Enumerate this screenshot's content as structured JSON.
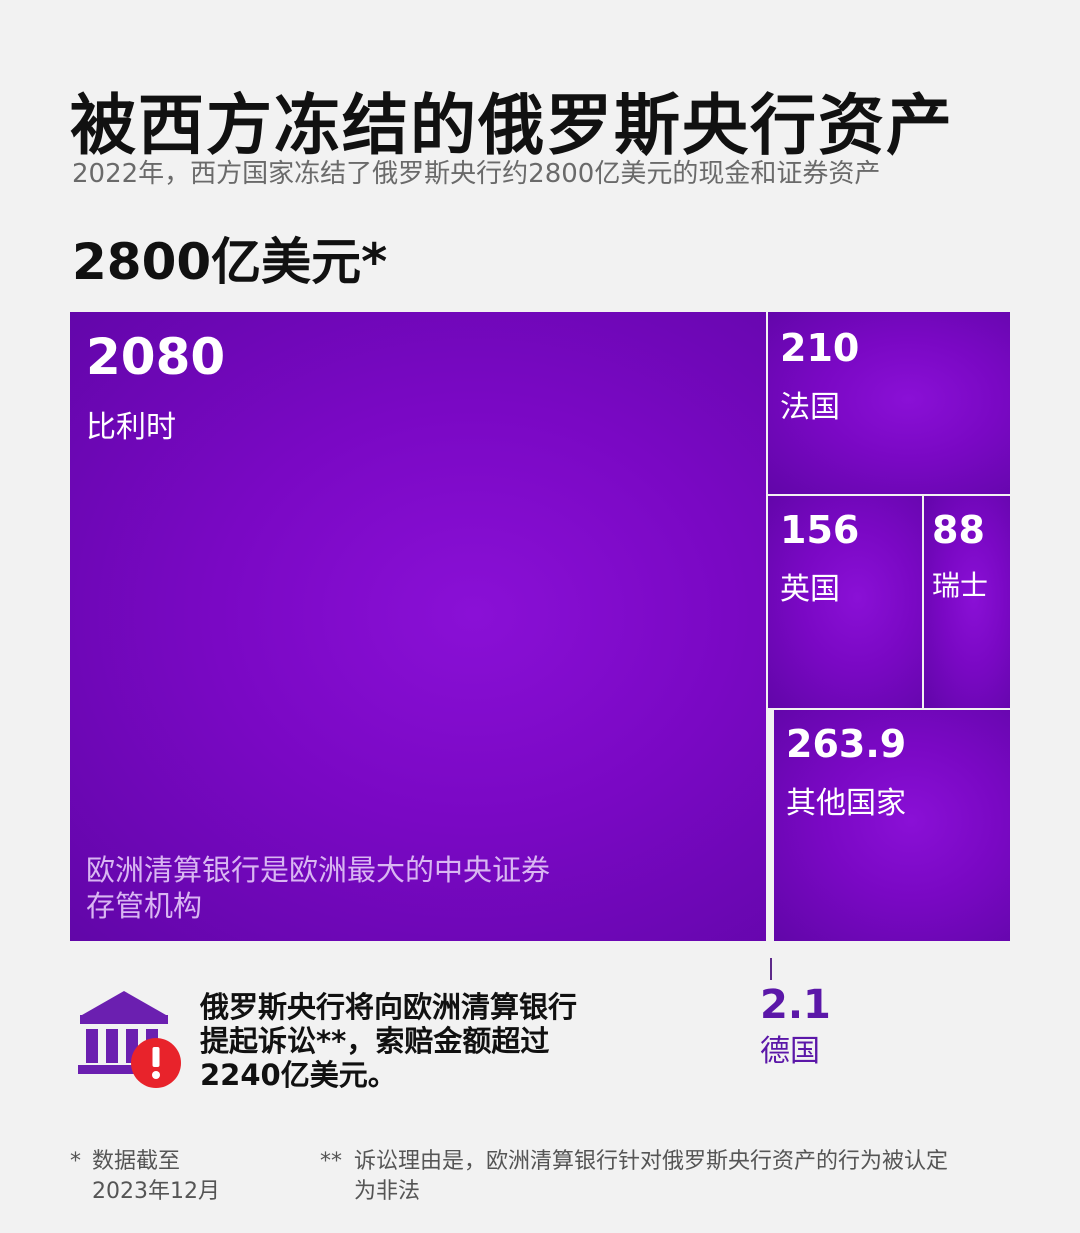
{
  "header": {
    "title": "被西方冻结的俄罗斯央行资产",
    "subtitle": "2022年，西方国家冻结了俄罗斯央行约2800亿美元的现金和证券资产",
    "total": "2800亿美元*"
  },
  "chart_data": {
    "type": "treemap",
    "unit": "亿美元",
    "items": [
      {
        "label": "比利时",
        "value": 2080,
        "value_text": "2080"
      },
      {
        "label": "法国",
        "value": 210,
        "value_text": "210"
      },
      {
        "label": "英国",
        "value": 156,
        "value_text": "156"
      },
      {
        "label": "瑞士",
        "value": 88,
        "value_text": "88"
      },
      {
        "label": "其他国家",
        "value": 263.9,
        "value_text": "263.9"
      },
      {
        "label": "德国",
        "value": 2.1,
        "value_text": "2.1"
      }
    ],
    "annotation": "欧洲清算银行是欧洲最大的中央证券存管机构",
    "colors": {
      "fill": "#7a08c4",
      "border": "#ffffff",
      "outside_label": "#5b17a8"
    }
  },
  "lawsuit": {
    "icon": "bank-alert-icon",
    "lines": [
      "俄罗斯央行将向欧洲清算银行",
      "提起诉讼**，索赔金额超过",
      "2240亿美元。"
    ]
  },
  "footnotes": {
    "one": {
      "mark": "*",
      "lines": [
        "数据截至",
        "2023年12月"
      ]
    },
    "two": {
      "mark": "**",
      "lines": [
        "诉讼理由是，欧洲清算银行针对俄罗斯央行资产的行为被认定",
        "为非法"
      ]
    }
  }
}
